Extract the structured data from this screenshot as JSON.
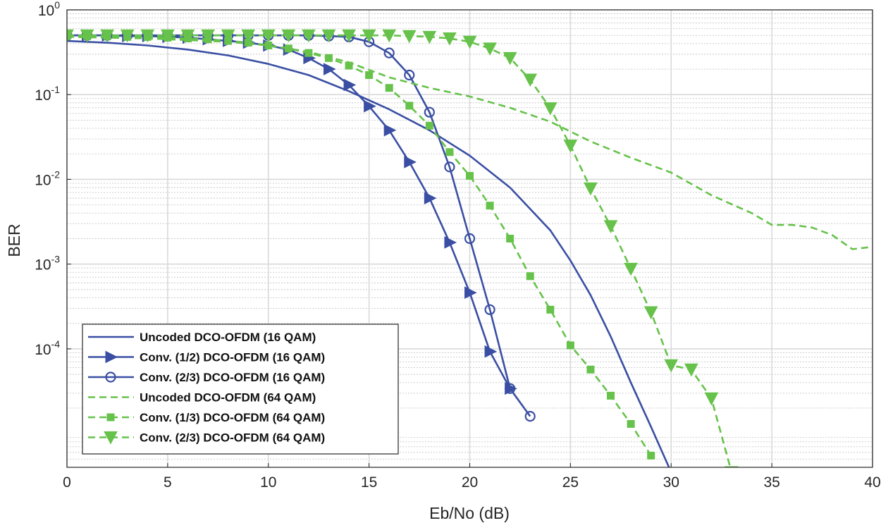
{
  "chart_data": {
    "type": "line",
    "title": "",
    "xlabel": "Eb/No (dB)",
    "ylabel": "BER",
    "xlim": [
      0,
      40
    ],
    "ylim": [
      4e-06,
      1
    ],
    "yscale": "log",
    "grid": true,
    "legend_position": "bottom-left",
    "x_ticks": [
      0,
      5,
      10,
      15,
      20,
      25,
      30,
      35,
      40
    ],
    "x_tick_labels": [
      "0",
      "5",
      "10",
      "15",
      "20",
      "25",
      "30",
      "35",
      "40"
    ],
    "y_ticks": [
      {
        "value": 1,
        "base": "10",
        "exp": "0"
      },
      {
        "value": 0.1,
        "base": "10",
        "exp": "-1"
      },
      {
        "value": 0.01,
        "base": "10",
        "exp": "-2"
      },
      {
        "value": 0.001,
        "base": "10",
        "exp": "-3"
      },
      {
        "value": 0.0001,
        "base": "10",
        "exp": "-4"
      }
    ],
    "colors": {
      "blue": "#3a4fa3",
      "green": "#66c24a",
      "grid_major": "#d9d9d9",
      "grid_minor": "#c8c8c8",
      "axis": "#262626"
    },
    "series": [
      {
        "name": "Uncoded DCO-OFDM (16 QAM)",
        "color": "#3a4fa3",
        "dash": "solid",
        "marker": "none",
        "x": [
          0,
          2,
          4,
          6,
          8,
          10,
          12,
          14,
          16,
          18,
          20,
          22,
          24,
          25,
          26,
          27,
          28,
          29,
          30
        ],
        "y": [
          0.43,
          0.41,
          0.38,
          0.34,
          0.29,
          0.23,
          0.17,
          0.11,
          0.067,
          0.038,
          0.019,
          0.008,
          0.0025,
          0.0011,
          0.00043,
          0.00014,
          4e-05,
          1.2e-05,
          3.5e-06
        ]
      },
      {
        "name": "Conv. (1/2) DCO-OFDM (16 QAM)",
        "color": "#3a4fa3",
        "dash": "solid",
        "marker": "triangle-right",
        "x": [
          0,
          1,
          2,
          3,
          4,
          5,
          6,
          7,
          8,
          9,
          10,
          11,
          12,
          13,
          14,
          15,
          16,
          17,
          18,
          19,
          20,
          21,
          22
        ],
        "y": [
          0.5,
          0.5,
          0.5,
          0.49,
          0.49,
          0.48,
          0.47,
          0.45,
          0.43,
          0.41,
          0.38,
          0.34,
          0.27,
          0.2,
          0.13,
          0.073,
          0.038,
          0.016,
          0.006,
          0.0018,
          0.00046,
          9.3e-05,
          3.4e-05
        ]
      },
      {
        "name": "Conv. (2/3) DCO-OFDM (16 QAM)",
        "color": "#3a4fa3",
        "dash": "solid",
        "marker": "circle",
        "x": [
          0,
          1,
          2,
          3,
          4,
          5,
          6,
          7,
          8,
          9,
          10,
          11,
          12,
          13,
          14,
          15,
          16,
          17,
          18,
          19,
          20,
          21,
          22,
          23
        ],
        "y": [
          0.5,
          0.5,
          0.5,
          0.5,
          0.5,
          0.5,
          0.5,
          0.5,
          0.5,
          0.5,
          0.5,
          0.5,
          0.5,
          0.49,
          0.48,
          0.42,
          0.31,
          0.17,
          0.062,
          0.014,
          0.002,
          0.00029,
          3.4e-05,
          1.6e-05
        ]
      },
      {
        "name": "Uncoded DCO-OFDM (64 QAM)",
        "color": "#66c24a",
        "dash": "dashed",
        "marker": "none",
        "x": [
          0,
          2,
          4,
          6,
          8,
          10,
          12,
          14,
          16,
          18,
          20,
          22,
          24,
          26,
          28,
          30,
          32,
          34,
          35,
          36,
          37,
          38,
          39,
          40
        ],
        "y": [
          0.48,
          0.47,
          0.46,
          0.44,
          0.42,
          0.38,
          0.32,
          0.24,
          0.16,
          0.12,
          0.095,
          0.07,
          0.048,
          0.028,
          0.018,
          0.012,
          0.0065,
          0.004,
          0.0029,
          0.0029,
          0.0027,
          0.0022,
          0.0015,
          0.0016
        ]
      },
      {
        "name": "Conv. (1/3) DCO-OFDM (64 QAM)",
        "color": "#66c24a",
        "dash": "dashed",
        "marker": "square",
        "x": [
          0,
          1,
          2,
          3,
          4,
          5,
          6,
          7,
          8,
          9,
          10,
          11,
          12,
          13,
          14,
          15,
          16,
          17,
          18,
          19,
          20,
          21,
          22,
          23,
          24,
          25,
          26,
          27,
          28,
          29
        ],
        "y": [
          0.49,
          0.49,
          0.49,
          0.48,
          0.48,
          0.47,
          0.46,
          0.45,
          0.43,
          0.41,
          0.38,
          0.35,
          0.31,
          0.27,
          0.22,
          0.17,
          0.12,
          0.074,
          0.043,
          0.021,
          0.011,
          0.0049,
          0.002,
          0.00072,
          0.00029,
          0.00011,
          5.7e-05,
          2.8e-05,
          1.3e-05,
          5.5e-06
        ]
      },
      {
        "name": "Conv. (2/3) DCO-OFDM (64 QAM)",
        "color": "#66c24a",
        "dash": "dashed",
        "marker": "triangle-down",
        "x": [
          0,
          1,
          2,
          3,
          4,
          5,
          6,
          7,
          8,
          9,
          10,
          11,
          12,
          13,
          14,
          15,
          16,
          17,
          18,
          19,
          20,
          21,
          22,
          23,
          24,
          25,
          26,
          27,
          28,
          29,
          30,
          31,
          32,
          33
        ],
        "y": [
          0.5,
          0.5,
          0.5,
          0.5,
          0.5,
          0.5,
          0.5,
          0.5,
          0.5,
          0.5,
          0.5,
          0.5,
          0.5,
          0.5,
          0.5,
          0.5,
          0.5,
          0.49,
          0.48,
          0.46,
          0.42,
          0.35,
          0.27,
          0.15,
          0.069,
          0.025,
          0.0078,
          0.0028,
          0.00088,
          0.00027,
          6.4e-05,
          5.7e-05,
          2.6e-05,
          3.5e-06
        ]
      }
    ]
  }
}
